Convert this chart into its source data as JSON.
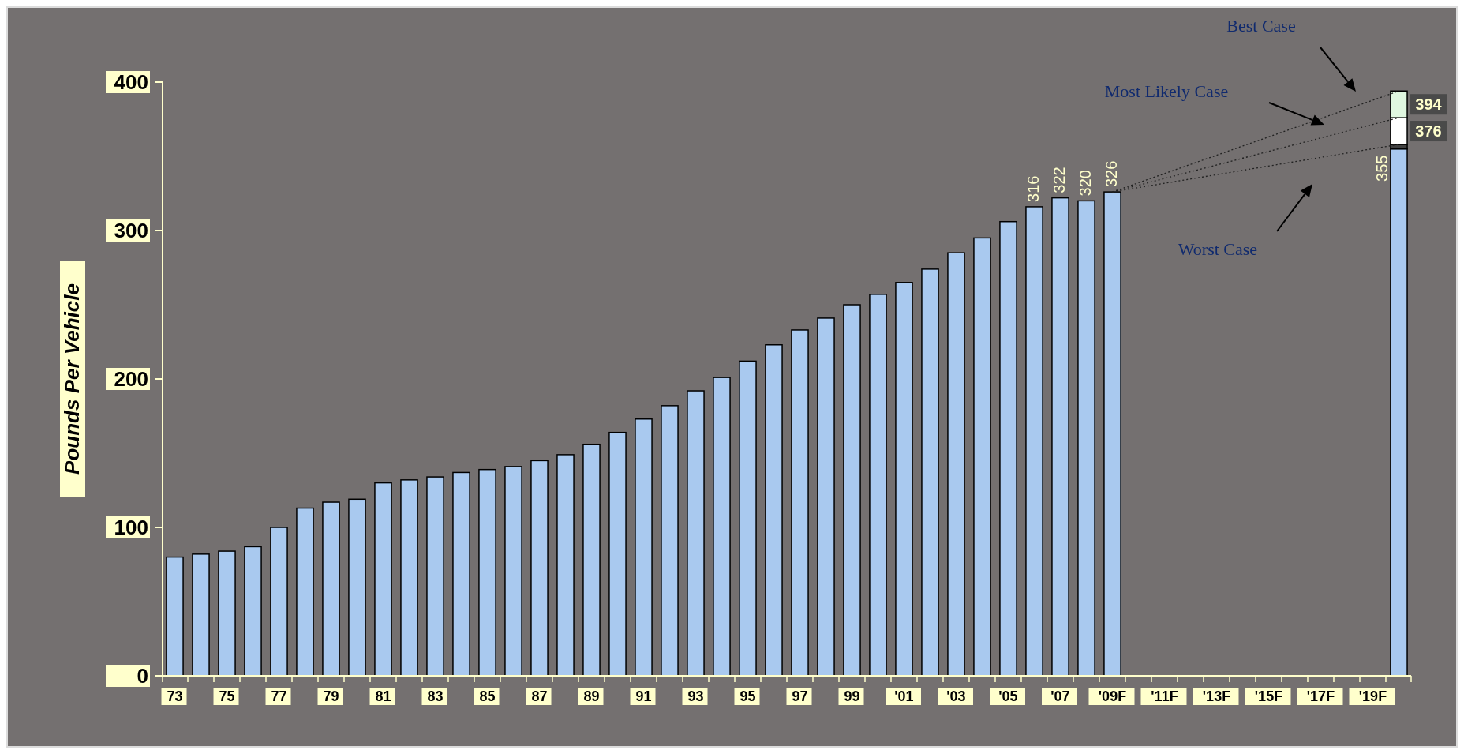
{
  "chart_data": {
    "type": "bar",
    "stacked": true,
    "ylabel": "Pounds Per Vehicle",
    "categories": [
      "73",
      null,
      "75",
      null,
      "77",
      null,
      "79",
      null,
      "81",
      null,
      "83",
      null,
      "85",
      null,
      "87",
      null,
      "89",
      null,
      "91",
      null,
      "93",
      null,
      "95",
      null,
      "97",
      null,
      "99",
      null,
      "'01",
      null,
      "'03",
      null,
      "'05",
      null,
      "'07",
      null,
      "'09F",
      null,
      "'11F",
      null,
      "'13F",
      null,
      "'15F",
      null,
      "'17F",
      null,
      "'19F",
      null
    ],
    "ylim": [
      0,
      400
    ],
    "yticks": [
      0,
      100,
      200,
      300,
      400
    ],
    "series": [
      {
        "color": "#a9c9ef",
        "values": [
          80,
          82,
          84,
          87,
          100,
          113,
          117,
          119,
          130,
          132,
          134,
          137,
          139,
          141,
          145,
          149,
          156,
          164,
          173,
          182,
          192,
          201,
          212,
          223,
          233,
          241,
          250,
          257,
          265,
          274,
          285,
          295,
          306,
          316,
          322,
          320,
          326,
          null,
          null,
          null,
          null,
          null,
          null,
          null,
          null,
          null,
          null,
          355
        ],
        "value_labels": [
          null,
          null,
          null,
          null,
          null,
          null,
          null,
          null,
          null,
          null,
          null,
          null,
          null,
          null,
          null,
          null,
          null,
          null,
          null,
          null,
          null,
          null,
          null,
          null,
          null,
          null,
          null,
          null,
          null,
          null,
          null,
          null,
          null,
          "316",
          "322",
          "320",
          "326",
          null,
          null,
          null,
          null,
          null,
          null,
          null,
          null,
          null,
          null,
          "355"
        ]
      },
      {
        "color": "#404040",
        "values": [
          null,
          null,
          null,
          null,
          null,
          null,
          null,
          null,
          null,
          null,
          null,
          null,
          null,
          null,
          null,
          null,
          null,
          null,
          null,
          null,
          null,
          null,
          null,
          null,
          null,
          null,
          null,
          null,
          null,
          null,
          null,
          null,
          null,
          null,
          null,
          null,
          null,
          null,
          null,
          null,
          null,
          null,
          null,
          null,
          null,
          null,
          null,
          3
        ]
      },
      {
        "color": "#ffffff",
        "values": [
          null,
          null,
          null,
          null,
          null,
          null,
          null,
          null,
          null,
          null,
          null,
          null,
          null,
          null,
          null,
          null,
          null,
          null,
          null,
          null,
          null,
          null,
          null,
          null,
          null,
          null,
          null,
          null,
          null,
          null,
          null,
          null,
          null,
          null,
          null,
          null,
          null,
          null,
          null,
          null,
          null,
          null,
          null,
          null,
          null,
          null,
          null,
          18
        ]
      },
      {
        "color": "#e0f7e0",
        "values": [
          null,
          null,
          null,
          null,
          null,
          null,
          null,
          null,
          null,
          null,
          null,
          null,
          null,
          null,
          null,
          null,
          null,
          null,
          null,
          null,
          null,
          null,
          null,
          null,
          null,
          null,
          null,
          null,
          null,
          null,
          null,
          null,
          null,
          null,
          null,
          null,
          null,
          null,
          null,
          null,
          null,
          null,
          null,
          null,
          null,
          null,
          null,
          18
        ]
      },
      {
        "type": "line",
        "line_style": "dotted",
        "color": "#222222",
        "values": [
          null,
          null,
          null,
          null,
          null,
          null,
          null,
          null,
          null,
          null,
          null,
          null,
          null,
          null,
          null,
          null,
          null,
          null,
          null,
          null,
          null,
          null,
          null,
          null,
          null,
          null,
          null,
          null,
          null,
          null,
          null,
          null,
          null,
          null,
          null,
          null,
          326,
          null,
          null,
          null,
          null,
          null,
          null,
          null,
          null,
          null,
          null,
          394
        ]
      },
      {
        "type": "line",
        "line_style": "dotted",
        "color": "#222222",
        "values": [
          null,
          null,
          null,
          null,
          null,
          null,
          null,
          null,
          null,
          null,
          null,
          null,
          null,
          null,
          null,
          null,
          null,
          null,
          null,
          null,
          null,
          null,
          null,
          null,
          null,
          null,
          null,
          null,
          null,
          null,
          null,
          null,
          null,
          null,
          null,
          null,
          326,
          null,
          null,
          null,
          null,
          null,
          null,
          null,
          null,
          null,
          null,
          376
        ]
      },
      {
        "type": "line",
        "line_style": "dotted",
        "color": "#222222",
        "values": [
          null,
          null,
          null,
          null,
          null,
          null,
          null,
          null,
          null,
          null,
          null,
          null,
          null,
          null,
          null,
          null,
          null,
          null,
          null,
          null,
          null,
          null,
          null,
          null,
          null,
          null,
          null,
          null,
          null,
          null,
          null,
          null,
          null,
          null,
          null,
          null,
          326,
          null,
          null,
          null,
          null,
          null,
          null,
          null,
          null,
          null,
          null,
          358
        ]
      }
    ],
    "annotations": [
      "Best Case",
      "Most Likely Case",
      "Worst Case",
      "376",
      "394"
    ]
  }
}
